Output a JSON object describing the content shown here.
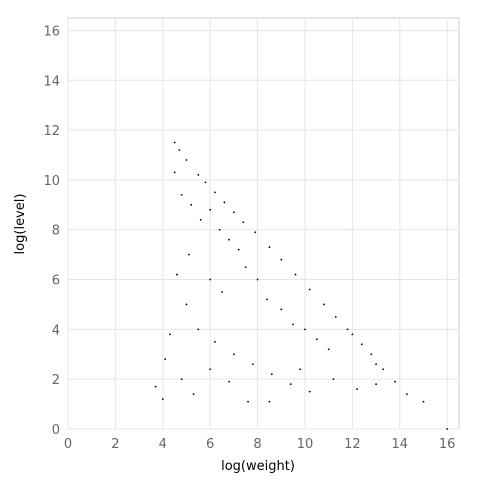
{
  "chart_data": {
    "type": "scatter",
    "title": "",
    "xlabel": "log(weight)",
    "ylabel": "log(level)",
    "xlim": [
      0,
      16.5
    ],
    "ylim": [
      0,
      16.5
    ],
    "xticks": [
      0,
      2,
      4,
      6,
      8,
      10,
      12,
      14,
      16
    ],
    "yticks": [
      0,
      2,
      4,
      6,
      8,
      10,
      12,
      14,
      16
    ],
    "grid": true,
    "legend": "none",
    "point_color": "#000000",
    "series": [
      {
        "values": [
          [
            4.5,
            11.5
          ],
          [
            4.7,
            11.2
          ],
          [
            5.0,
            10.8
          ],
          [
            5.5,
            10.2
          ],
          [
            5.8,
            9.9
          ],
          [
            6.2,
            9.5
          ],
          [
            6.6,
            9.1
          ],
          [
            7.0,
            8.7
          ],
          [
            7.4,
            8.3
          ],
          [
            7.9,
            7.9
          ],
          [
            8.5,
            7.3
          ],
          [
            9.0,
            6.8
          ],
          [
            9.6,
            6.2
          ],
          [
            10.2,
            5.6
          ],
          [
            10.8,
            5.0
          ],
          [
            11.3,
            4.5
          ],
          [
            11.8,
            4.0
          ],
          [
            12.0,
            3.8
          ],
          [
            12.4,
            3.4
          ],
          [
            12.8,
            3.0
          ],
          [
            13.0,
            2.6
          ],
          [
            13.3,
            2.4
          ],
          [
            13.8,
            1.9
          ],
          [
            14.3,
            1.4
          ],
          [
            15.0,
            1.1
          ],
          [
            16.0,
            0.0
          ],
          [
            5.2,
            9.0
          ],
          [
            5.6,
            8.4
          ],
          [
            6.0,
            8.8
          ],
          [
            6.4,
            8.0
          ],
          [
            6.8,
            7.6
          ],
          [
            7.2,
            7.2
          ],
          [
            6.0,
            6.0
          ],
          [
            6.5,
            5.5
          ],
          [
            7.5,
            6.5
          ],
          [
            8.0,
            6.0
          ],
          [
            8.4,
            5.2
          ],
          [
            9.0,
            4.8
          ],
          [
            9.5,
            4.2
          ],
          [
            10.0,
            4.0
          ],
          [
            10.5,
            3.6
          ],
          [
            11.0,
            3.2
          ],
          [
            5.0,
            5.0
          ],
          [
            5.5,
            4.0
          ],
          [
            6.2,
            3.5
          ],
          [
            7.0,
            3.0
          ],
          [
            7.8,
            2.6
          ],
          [
            8.6,
            2.2
          ],
          [
            9.4,
            1.8
          ],
          [
            10.2,
            1.5
          ],
          [
            4.3,
            3.8
          ],
          [
            4.1,
            2.8
          ],
          [
            3.7,
            1.7
          ],
          [
            4.0,
            1.2
          ],
          [
            4.8,
            2.0
          ],
          [
            5.3,
            1.4
          ],
          [
            6.0,
            2.4
          ],
          [
            6.8,
            1.9
          ],
          [
            7.6,
            1.1
          ],
          [
            8.5,
            1.1
          ],
          [
            9.8,
            2.4
          ],
          [
            11.2,
            2.0
          ],
          [
            12.2,
            1.6
          ],
          [
            13.0,
            1.8
          ],
          [
            5.1,
            7.0
          ],
          [
            4.6,
            6.2
          ],
          [
            4.5,
            10.3
          ],
          [
            4.8,
            9.4
          ]
        ]
      }
    ]
  }
}
